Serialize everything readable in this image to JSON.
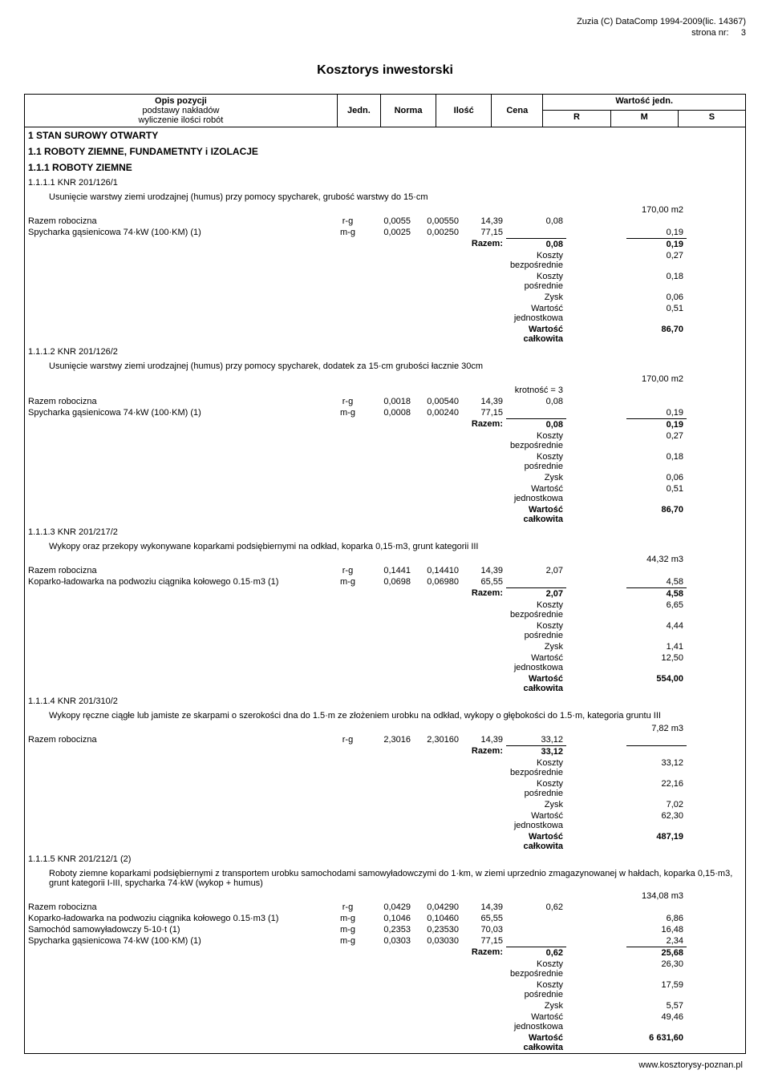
{
  "header": {
    "line1": "Zuzia (C) DataComp 1994-2009(lic. 14367)",
    "line2": "strona nr:",
    "page": "3"
  },
  "title": "Kosztorys inwestorski",
  "columns": {
    "opis": "Opis pozycji",
    "opis_sub1": "podstawy nakładów",
    "opis_sub2": "wyliczenie ilości robót",
    "jedn": "Jedn.",
    "norma": "Norma",
    "ilosc": "Ilość",
    "cena": "Cena",
    "wartosc": "Wartość jedn.",
    "r": "R",
    "m": "M",
    "s": "S"
  },
  "sections": {
    "s1": "1 STAN SUROWY OTWARTY",
    "s11": "1.1 ROBOTY ZIEMNE, FUNDAMETNTY i IZOLACJE",
    "s111": "1.1.1 ROBOTY ZIEMNE"
  },
  "labels": {
    "razem_robocizna": "Razem robocizna",
    "spycharka": "Spycharka gąsienicowa 74·kW (100·KM) (1)",
    "koparko": "Koparko-ładowarka na podwoziu ciągnika kołowego 0.15·m3 (1)",
    "samochod": "Samochód samowyładowczy 5-10·t (1)",
    "razem": "Razem:",
    "koszty_bezp": "Koszty bezpośrednie",
    "koszty_posr": "Koszty pośrednie",
    "zysk": "Zysk",
    "wart_jedn": "Wartość jednostkowa",
    "wart_calk": "Wartość całkowita",
    "krotnosc": "krotność = 3"
  },
  "items": {
    "i1": {
      "code": "1.1.1.1 KNR 201/126/1",
      "desc": "Usunięcie warstwy ziemi urodzajnej (humus) przy pomocy spycharek, grubość warstwy do 15·cm",
      "unit": "170,00 m2",
      "rows": [
        {
          "label": "Razem robocizna",
          "jedn": "r-g",
          "norma": "0,0055",
          "ilosc": "0,00550",
          "cena": "14,39",
          "r": "0,08",
          "m": "",
          "s": ""
        },
        {
          "label": "Spycharka gąsienicowa 74·kW (100·KM) (1)",
          "jedn": "m-g",
          "norma": "0,0025",
          "ilosc": "0,00250",
          "cena": "77,15",
          "r": "",
          "m": "",
          "s": "0,19"
        }
      ],
      "razem": {
        "r": "0,08",
        "s": "0,19"
      },
      "summary": {
        "kb": "0,27",
        "kp": "0,18",
        "zy": "0,06",
        "wj": "0,51",
        "wc": "86,70"
      }
    },
    "i2": {
      "code": "1.1.1.2 KNR 201/126/2",
      "desc": "Usunięcie warstwy ziemi urodzajnej (humus) przy pomocy spycharek, dodatek za 15·cm grubości łacznie 30cm",
      "unit": "170,00 m2",
      "rows": [
        {
          "label": "Razem robocizna",
          "jedn": "r-g",
          "norma": "0,0018",
          "ilosc": "0,00540",
          "cena": "14,39",
          "r": "0,08",
          "m": "",
          "s": ""
        },
        {
          "label": "Spycharka gąsienicowa 74·kW (100·KM) (1)",
          "jedn": "m-g",
          "norma": "0,0008",
          "ilosc": "0,00240",
          "cena": "77,15",
          "r": "",
          "m": "",
          "s": "0,19"
        }
      ],
      "razem": {
        "r": "0,08",
        "s": "0,19"
      },
      "summary": {
        "kb": "0,27",
        "kp": "0,18",
        "zy": "0,06",
        "wj": "0,51",
        "wc": "86,70"
      }
    },
    "i3": {
      "code": "1.1.1.3 KNR 201/217/2",
      "desc": "Wykopy oraz przekopy wykonywane koparkami podsiębiernymi na odkład, koparka 0,15·m3, grunt kategorii III",
      "unit": "44,32 m3",
      "rows": [
        {
          "label": "Razem robocizna",
          "jedn": "r-g",
          "norma": "0,1441",
          "ilosc": "0,14410",
          "cena": "14,39",
          "r": "2,07",
          "m": "",
          "s": ""
        },
        {
          "label": "Koparko-ładowarka na podwoziu ciągnika kołowego 0.15·m3 (1)",
          "jedn": "m-g",
          "norma": "0,0698",
          "ilosc": "0,06980",
          "cena": "65,55",
          "r": "",
          "m": "",
          "s": "4,58"
        }
      ],
      "razem": {
        "r": "2,07",
        "s": "4,58"
      },
      "summary": {
        "kb": "6,65",
        "kp": "4,44",
        "zy": "1,41",
        "wj": "12,50",
        "wc": "554,00"
      }
    },
    "i4": {
      "code": "1.1.1.4 KNR 201/310/2",
      "desc": "Wykopy ręczne ciągłe lub jamiste ze skarpami o szerokości dna do 1.5·m ze złożeniem urobku na odkład, wykopy o głębokości do 1.5·m, kategoria gruntu III",
      "unit": "7,82 m3",
      "rows": [
        {
          "label": "Razem robocizna",
          "jedn": "r-g",
          "norma": "2,3016",
          "ilosc": "2,30160",
          "cena": "14,39",
          "r": "33,12",
          "m": "",
          "s": ""
        }
      ],
      "razem": {
        "r": "33,12",
        "s": ""
      },
      "summary": {
        "kb": "33,12",
        "kp": "22,16",
        "zy": "7,02",
        "wj": "62,30",
        "wc": "487,19"
      }
    },
    "i5": {
      "code": "1.1.1.5 KNR 201/212/1 (2)",
      "desc": "Roboty ziemne koparkami podsiębiernymi z transportem urobku samochodami samowyładowczymi do 1·km, w ziemi uprzednio zmagazynowanej w hałdach, koparka 0,15·m3, grunt kategorii I-III, spycharka 74·kW (wykop + humus)",
      "unit": "134,08 m3",
      "rows": [
        {
          "label": "Razem robocizna",
          "jedn": "r-g",
          "norma": "0,0429",
          "ilosc": "0,04290",
          "cena": "14,39",
          "r": "0,62",
          "m": "",
          "s": ""
        },
        {
          "label": "Koparko-ładowarka na podwoziu ciągnika kołowego 0.15·m3 (1)",
          "jedn": "m-g",
          "norma": "0,1046",
          "ilosc": "0,10460",
          "cena": "65,55",
          "r": "",
          "m": "",
          "s": "6,86"
        },
        {
          "label": "Samochód samowyładowczy 5-10·t (1)",
          "jedn": "m-g",
          "norma": "0,2353",
          "ilosc": "0,23530",
          "cena": "70,03",
          "r": "",
          "m": "",
          "s": "16,48"
        },
        {
          "label": "Spycharka gąsienicowa 74·kW (100·KM) (1)",
          "jedn": "m-g",
          "norma": "0,0303",
          "ilosc": "0,03030",
          "cena": "77,15",
          "r": "",
          "m": "",
          "s": "2,34"
        }
      ],
      "razem": {
        "r": "0,62",
        "s": "25,68"
      },
      "summary": {
        "kb": "26,30",
        "kp": "17,59",
        "zy": "5,57",
        "wj": "49,46",
        "wc": "6 631,60"
      }
    }
  },
  "footer": "www.kosztorysy-poznan.pl"
}
